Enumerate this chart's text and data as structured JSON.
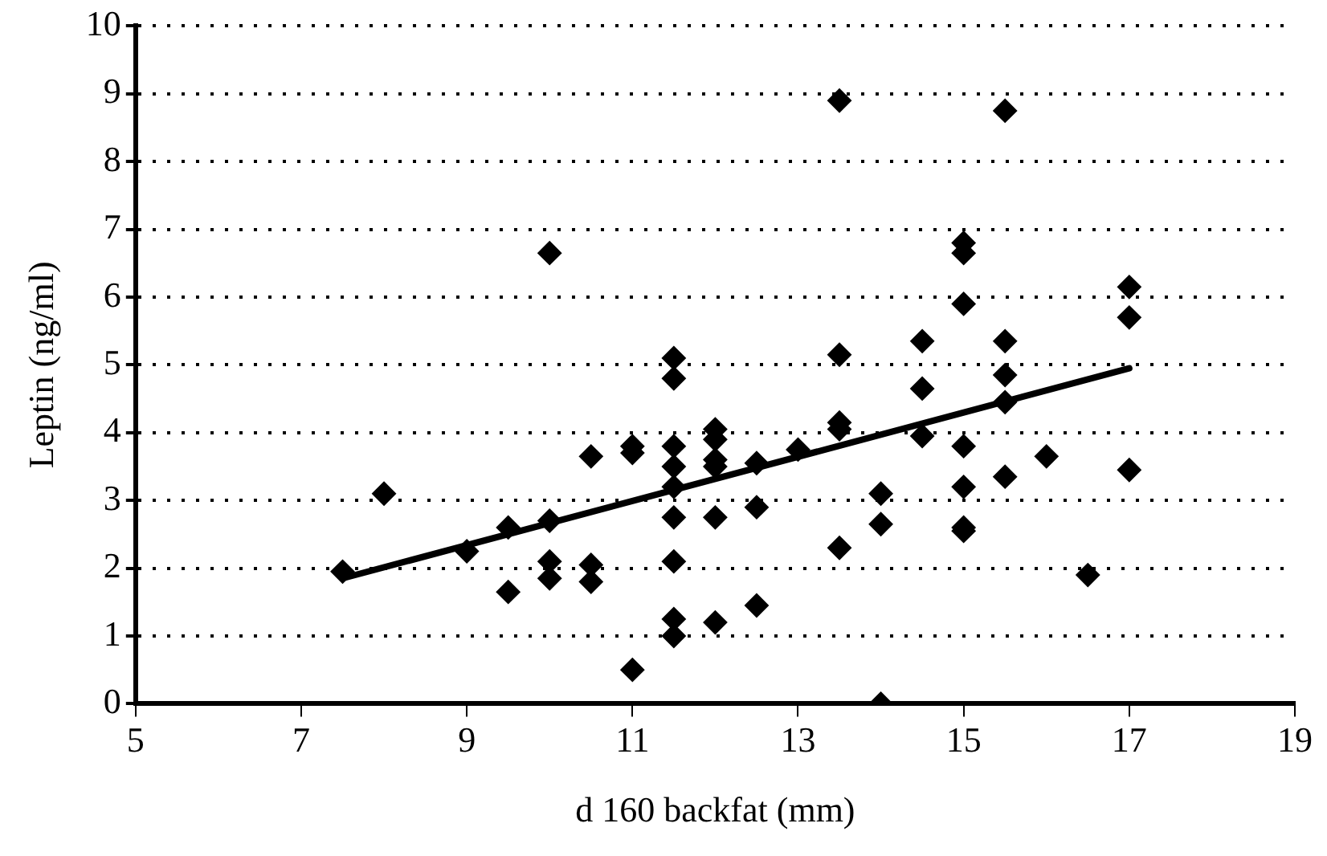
{
  "chart_data": {
    "type": "scatter",
    "xlabel": "d 160 backfat (mm)",
    "ylabel": "Leptin (ng/ml)",
    "xlim": [
      5,
      19
    ],
    "xticks": [
      5,
      7,
      9,
      11,
      13,
      15,
      17,
      19
    ],
    "ylim": [
      0,
      10
    ],
    "yticks": [
      0,
      1,
      2,
      3,
      4,
      5,
      6,
      7,
      8,
      9,
      10
    ],
    "grid": "y",
    "legend": false,
    "marker": "diamond",
    "series": [
      {
        "color": "#000000",
        "x": [
          7.5,
          8,
          9,
          9.5,
          9.5,
          10,
          10,
          10,
          10,
          10.5,
          10.5,
          10.5,
          11,
          11,
          11,
          11.5,
          11.5,
          11.5,
          11.5,
          11.5,
          11.5,
          11.5,
          11.5,
          11.5,
          12,
          12,
          12,
          12,
          12,
          12,
          12.5,
          12.5,
          12.5,
          13,
          13.5,
          13.5,
          13.5,
          13.5,
          13.5,
          14,
          14,
          14,
          14.5,
          14.5,
          14.5,
          15,
          15,
          15,
          15,
          15,
          15,
          15,
          15.5,
          15.5,
          15.5,
          15.5,
          15.5,
          16,
          16.5,
          17,
          17,
          17
        ],
        "values": [
          1.95,
          3.1,
          2.25,
          2.6,
          1.65,
          6.65,
          2.7,
          2.1,
          1.85,
          3.65,
          2.05,
          1.8,
          3.8,
          3.7,
          0.5,
          5.1,
          4.8,
          3.8,
          3.5,
          3.2,
          2.75,
          2.1,
          1.25,
          1.0,
          4.05,
          3.9,
          3.6,
          3.5,
          2.75,
          1.2,
          3.55,
          2.9,
          1.45,
          3.75,
          8.9,
          5.15,
          4.15,
          4.05,
          2.3,
          3.1,
          2.65,
          0.0,
          5.35,
          4.65,
          3.95,
          6.8,
          6.65,
          5.9,
          3.8,
          3.2,
          2.6,
          2.55,
          8.75,
          5.35,
          4.85,
          4.45,
          3.35,
          3.65,
          1.9,
          6.15,
          5.7,
          3.45
        ]
      },
      {
        "type": "line",
        "color": "#000000",
        "marker": "none",
        "line_style": "solid",
        "x": [
          7.5,
          17
        ],
        "values": [
          1.85,
          4.95
        ]
      }
    ]
  }
}
